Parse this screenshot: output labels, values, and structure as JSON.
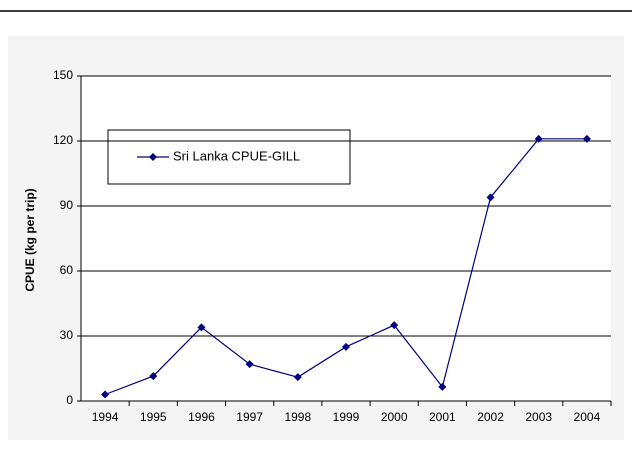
{
  "chart_data": {
    "type": "line",
    "y_label": "CPUE (kg per trip)",
    "categories": [
      "1994",
      "1995",
      "1996",
      "1997",
      "1998",
      "1999",
      "2000",
      "2001",
      "2002",
      "2003",
      "2004"
    ],
    "series": [
      {
        "name": "Sri Lanka CPUE-GILL",
        "color": "#000080",
        "values": [
          3,
          11.5,
          34,
          17,
          11,
          25,
          35,
          6.5,
          94,
          121,
          121
        ]
      }
    ],
    "ylim": [
      0,
      150
    ],
    "yticks": [
      0,
      30,
      60,
      90,
      120,
      150
    ],
    "grid": true
  }
}
